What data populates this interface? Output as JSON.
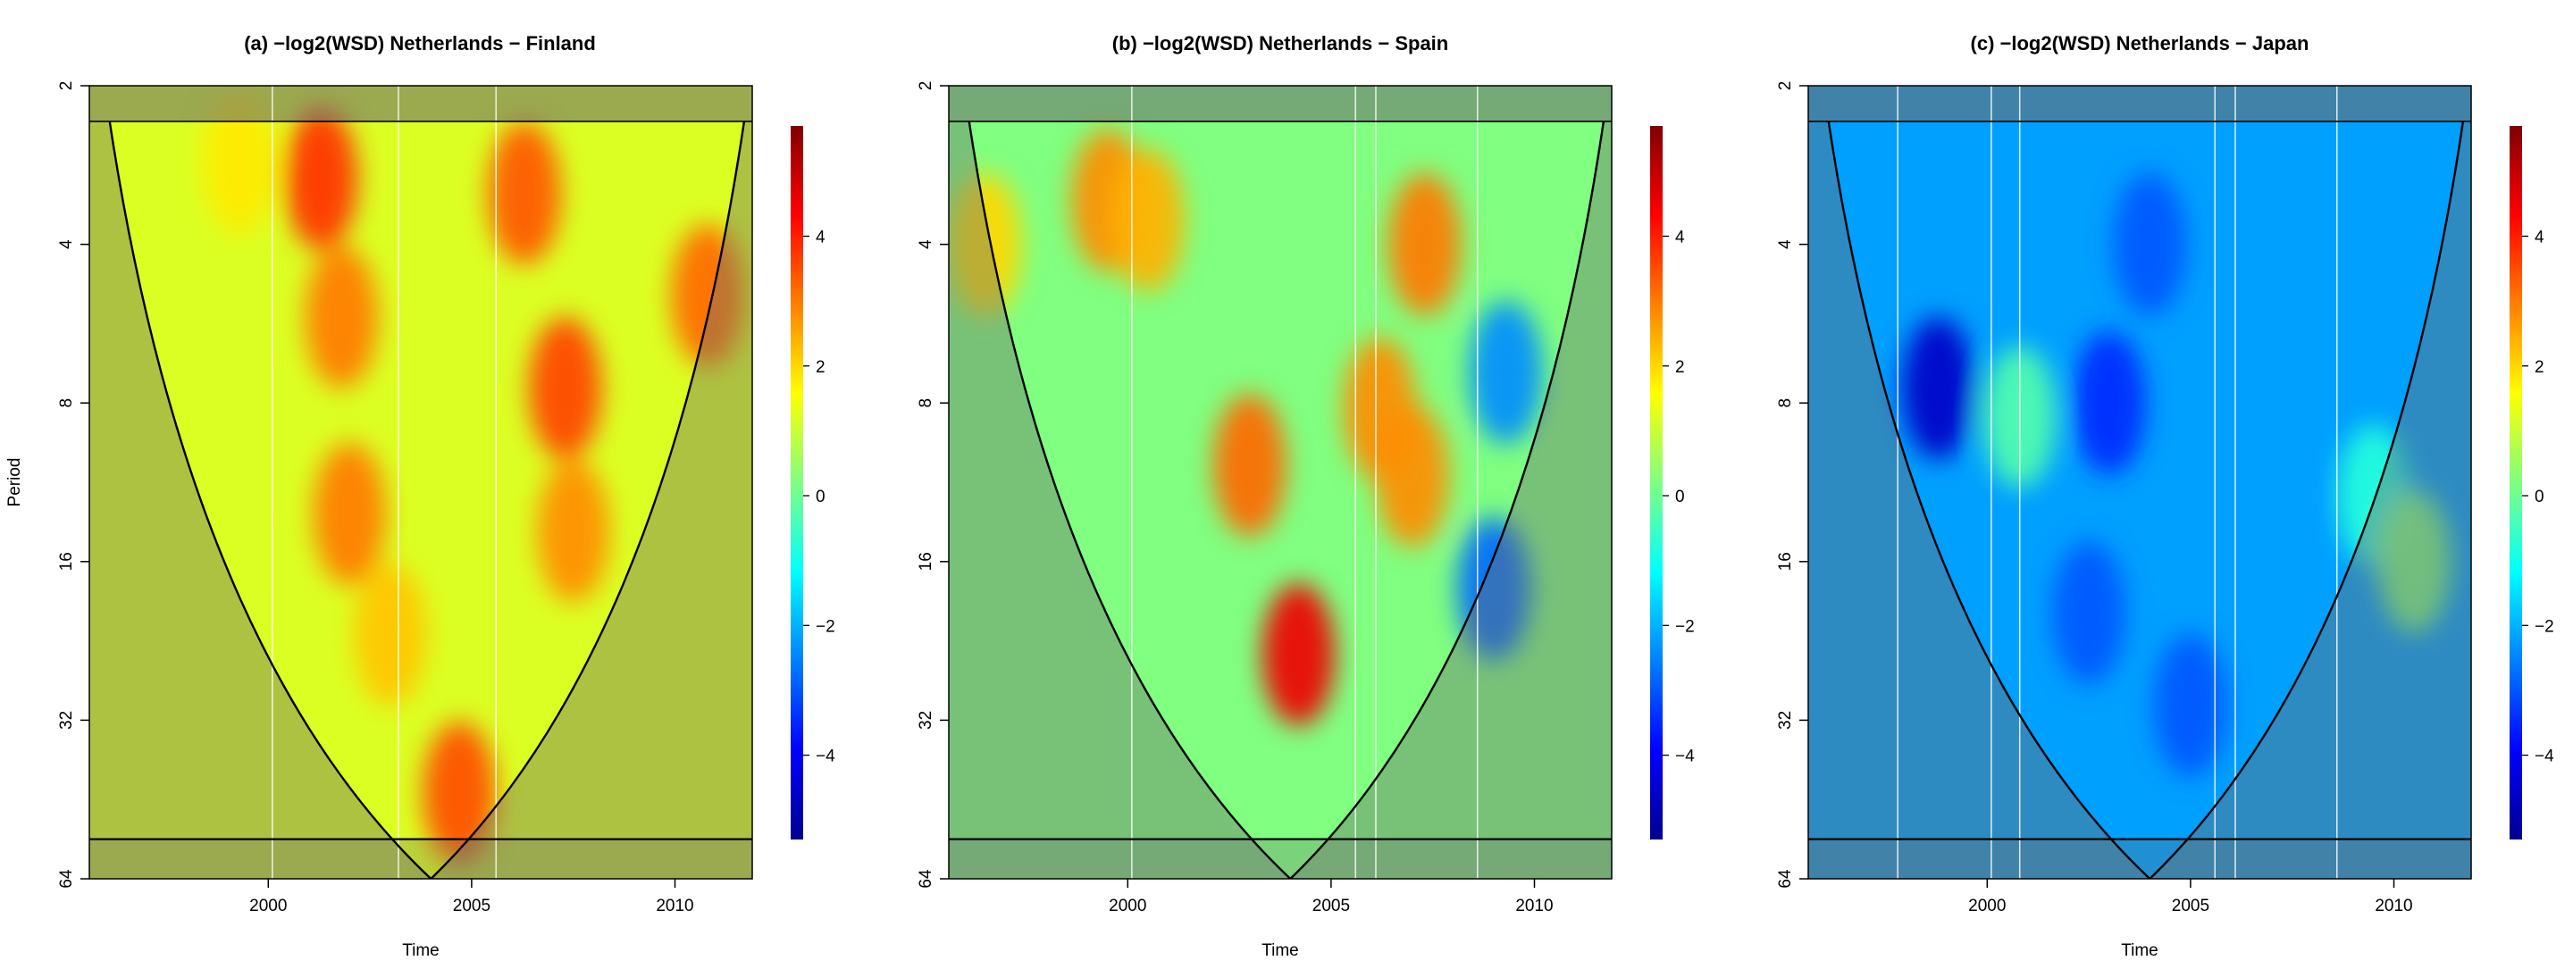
{
  "ylabel_shared": "Period",
  "chart_data": [
    {
      "type": "heatmap",
      "title": "(a) −log2(WSD) Netherlands − Finland",
      "xlabel": "Time",
      "xlim": [
        1995.6,
        2011.9
      ],
      "x_ticks": [
        2000,
        2005,
        2010
      ],
      "y_scale": "log2",
      "y_ticks": [
        2,
        4,
        8,
        16,
        32,
        64
      ],
      "ylim": [
        2,
        64
      ],
      "colorbar": {
        "min": -5.3,
        "max": 5.7,
        "ticks": [
          -4,
          -2,
          0,
          2,
          4
        ]
      },
      "cone_of_influence": {
        "apex_x": 2004.0,
        "top_left_x": 1996.1,
        "top_right_x": 2011.7
      },
      "significance_lines_x": [
        2000.1,
        2003.2,
        2005.6
      ],
      "hotspots": [
        {
          "x": 2001.3,
          "y": 3.0,
          "v": 3.8
        },
        {
          "x": 2001.8,
          "y": 5.5,
          "v": 3.0
        },
        {
          "x": 2002.0,
          "y": 13,
          "v": 3.0
        },
        {
          "x": 2006.3,
          "y": 3.2,
          "v": 3.4
        },
        {
          "x": 2007.3,
          "y": 7.5,
          "v": 3.6
        },
        {
          "x": 2007.5,
          "y": 14,
          "v": 2.8
        },
        {
          "x": 2004.7,
          "y": 44,
          "v": 3.5
        },
        {
          "x": 2010.8,
          "y": 5.0,
          "v": 3.2
        },
        {
          "x": 1999.3,
          "y": 2.8,
          "v": 1.8
        },
        {
          "x": 2003.0,
          "y": 22,
          "v": 2.2
        }
      ]
    },
    {
      "type": "heatmap",
      "title": "(b) −log2(WSD) Netherlands − Spain",
      "xlabel": "Time",
      "xlim": [
        1995.6,
        2011.9
      ],
      "x_ticks": [
        2000,
        2005,
        2010
      ],
      "y_scale": "log2",
      "y_ticks": [
        2,
        4,
        8,
        16,
        32,
        64
      ],
      "ylim": [
        2,
        64
      ],
      "colorbar": {
        "min": -5.3,
        "max": 5.7,
        "ticks": [
          -4,
          -2,
          0,
          2,
          4
        ]
      },
      "cone_of_influence": {
        "apex_x": 2004.0,
        "top_left_x": 1996.1,
        "top_right_x": 2011.7
      },
      "significance_lines_x": [
        2000.1,
        2005.6,
        2006.1,
        2008.6
      ],
      "hotspots": [
        {
          "x": 1999.5,
          "y": 3.3,
          "v": 2.8
        },
        {
          "x": 2000.5,
          "y": 3.6,
          "v": 2.4
        },
        {
          "x": 2003.0,
          "y": 10.5,
          "v": 3.2
        },
        {
          "x": 2004.2,
          "y": 24,
          "v": 4.5
        },
        {
          "x": 2006.2,
          "y": 8.2,
          "v": 2.8
        },
        {
          "x": 2007.0,
          "y": 11,
          "v": 2.8
        },
        {
          "x": 2007.3,
          "y": 4.0,
          "v": 3.0
        },
        {
          "x": 2009.3,
          "y": 7.0,
          "v": -2.4
        },
        {
          "x": 2009.0,
          "y": 18,
          "v": -2.8
        },
        {
          "x": 1996.5,
          "y": 4.0,
          "v": 2.0
        }
      ]
    },
    {
      "type": "heatmap",
      "title": "(c) −log2(WSD) Netherlands − Japan",
      "xlabel": "Time",
      "xlim": [
        1995.6,
        2011.9
      ],
      "x_ticks": [
        2000,
        2005,
        2010
      ],
      "y_scale": "log2",
      "y_ticks": [
        2,
        4,
        8,
        16,
        32,
        64
      ],
      "ylim": [
        2,
        64
      ],
      "colorbar": {
        "min": -5.3,
        "max": 5.7,
        "ticks": [
          -4,
          -2,
          0,
          2,
          4
        ]
      },
      "cone_of_influence": {
        "apex_x": 2004.0,
        "top_left_x": 1996.1,
        "top_right_x": 2011.7
      },
      "significance_lines_x": [
        1997.8,
        2000.1,
        2000.8,
        2005.6,
        2006.1,
        2008.6
      ],
      "hotspots": [
        {
          "x": 1998.8,
          "y": 7.5,
          "v": -4.6
        },
        {
          "x": 2003.0,
          "y": 8.0,
          "v": -3.5
        },
        {
          "x": 2002.5,
          "y": 20,
          "v": -3.0
        },
        {
          "x": 2005.0,
          "y": 30,
          "v": -3.0
        },
        {
          "x": 2000.8,
          "y": 8.5,
          "v": -0.3
        },
        {
          "x": 2009.5,
          "y": 12,
          "v": -0.8
        },
        {
          "x": 2010.5,
          "y": 16,
          "v": 0.2
        },
        {
          "x": 2004.0,
          "y": 4.0,
          "v": -3.0
        }
      ]
    }
  ]
}
